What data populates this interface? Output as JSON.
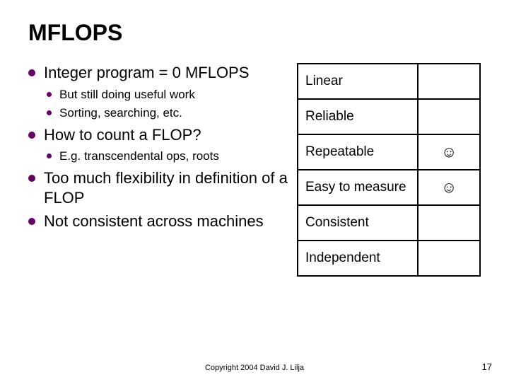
{
  "title": "MFLOPS",
  "bullets": [
    {
      "text": "Integer program = 0 MFLOPS",
      "sub": [
        "But still doing useful work",
        "Sorting, searching, etc."
      ]
    },
    {
      "text": "How to count a FLOP?",
      "sub": [
        "E.g. transcendental ops, roots"
      ]
    },
    {
      "text": "Too much flexibility in definition of a FLOP",
      "sub": []
    },
    {
      "text": "Not consistent across machines",
      "sub": []
    }
  ],
  "table": {
    "rows": [
      {
        "label": "Linear",
        "mark": ""
      },
      {
        "label": "Reliable",
        "mark": ""
      },
      {
        "label": "Repeatable",
        "mark": "☺"
      },
      {
        "label": "Easy to measure",
        "mark": "☺"
      },
      {
        "label": "Consistent",
        "mark": ""
      },
      {
        "label": "Independent",
        "mark": ""
      }
    ]
  },
  "footer": "Copyright 2004 David J. Lilja",
  "page": "17",
  "colors": {
    "bullet": "#660066",
    "text": "#000000",
    "border": "#000000",
    "background": "#ffffff"
  },
  "fonts": {
    "title_size": 32,
    "bullet_size": 22,
    "sub_bullet_size": 17,
    "table_size": 19,
    "footer_size": 11
  }
}
